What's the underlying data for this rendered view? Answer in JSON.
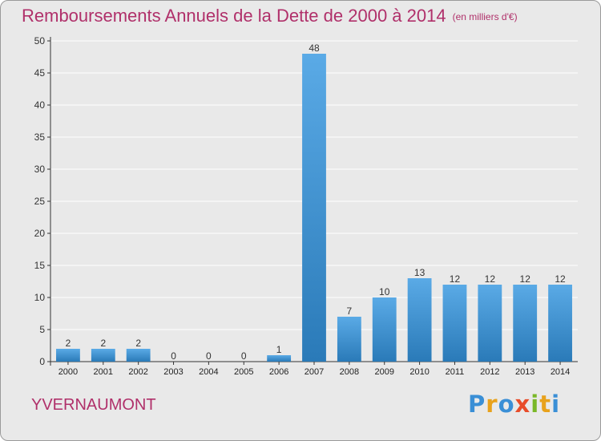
{
  "title": "Remboursements Annuels de la Dette de 2000 à 2014",
  "unit": "(en milliers d'€)",
  "commune": "YVERNAUMONT",
  "brand": {
    "text": "Proxiti",
    "letters": [
      {
        "char": "P",
        "color": "#3a8fd6"
      },
      {
        "char": "r",
        "color": "#e8a21c"
      },
      {
        "char": "o",
        "color": "#3a8fd6"
      },
      {
        "char": "x",
        "color": "#e84c2a"
      },
      {
        "char": "i",
        "color": "#7ab828"
      },
      {
        "char": "t",
        "color": "#e8a21c"
      },
      {
        "char": "i",
        "color": "#3a8fd6"
      }
    ]
  },
  "colors": {
    "title": "#b0306a",
    "bar_light": "#5aaae6",
    "bar_dark": "#2a7ab8",
    "grid": "#ffffff"
  },
  "chart_data": {
    "type": "bar",
    "title": "Remboursements Annuels de la Dette de 2000 à 2014",
    "categories": [
      "2000",
      "2001",
      "2002",
      "2003",
      "2004",
      "2005",
      "2006",
      "2007",
      "2008",
      "2009",
      "2010",
      "2011",
      "2012",
      "2013",
      "2014"
    ],
    "values": [
      2,
      2,
      2,
      0,
      0,
      0,
      1,
      48,
      7,
      10,
      13,
      12,
      12,
      12,
      12
    ],
    "labels": [
      "2",
      "2",
      "2",
      "0",
      "0",
      "0",
      "1",
      "48",
      "7",
      "10",
      "13",
      "12",
      "12",
      "12",
      "12"
    ],
    "ylim": [
      0,
      50
    ],
    "yticks": [
      0,
      5,
      10,
      15,
      20,
      25,
      30,
      35,
      40,
      45,
      50
    ],
    "grid": true
  }
}
